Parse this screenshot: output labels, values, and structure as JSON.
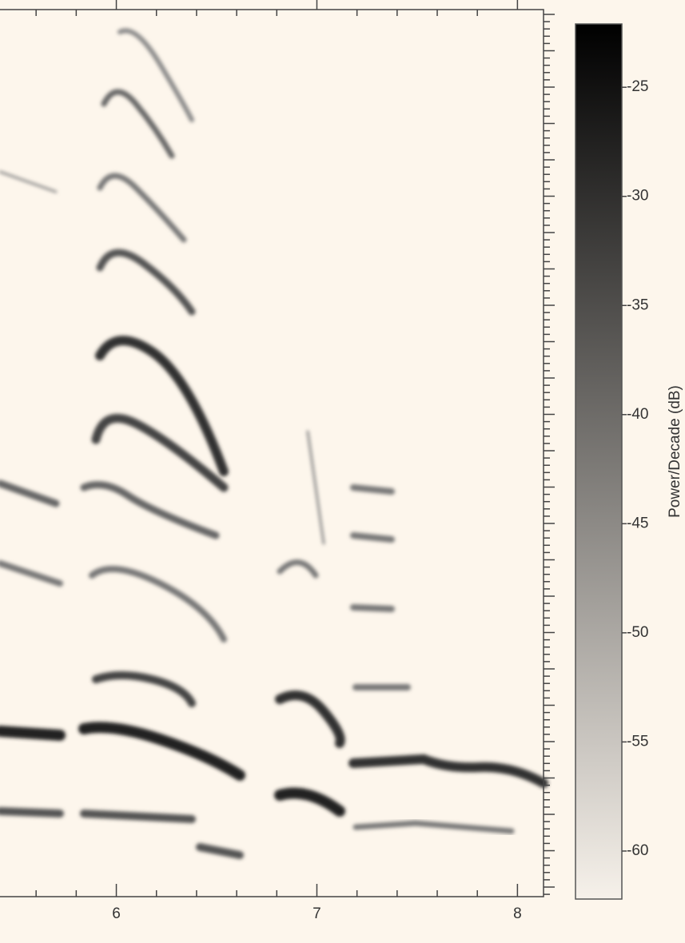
{
  "chart_data": {
    "type": "spectrogram",
    "xlim": [
      5.42,
      8.13
    ],
    "xticks": [
      6,
      7,
      8
    ],
    "xminorticks": [
      5.6,
      5.8,
      6.2,
      6.4,
      6.6,
      6.8,
      7.2,
      7.4,
      7.6,
      7.8
    ],
    "colorbar": {
      "label": "Power/Decade (dB)",
      "clim": [
        -62.2,
        -22.1
      ],
      "ticks": [
        -25,
        -30,
        -35,
        -40,
        -45,
        -50,
        -55,
        -60
      ],
      "colors": [
        "#f6f1ea",
        "#000000"
      ]
    }
  }
}
